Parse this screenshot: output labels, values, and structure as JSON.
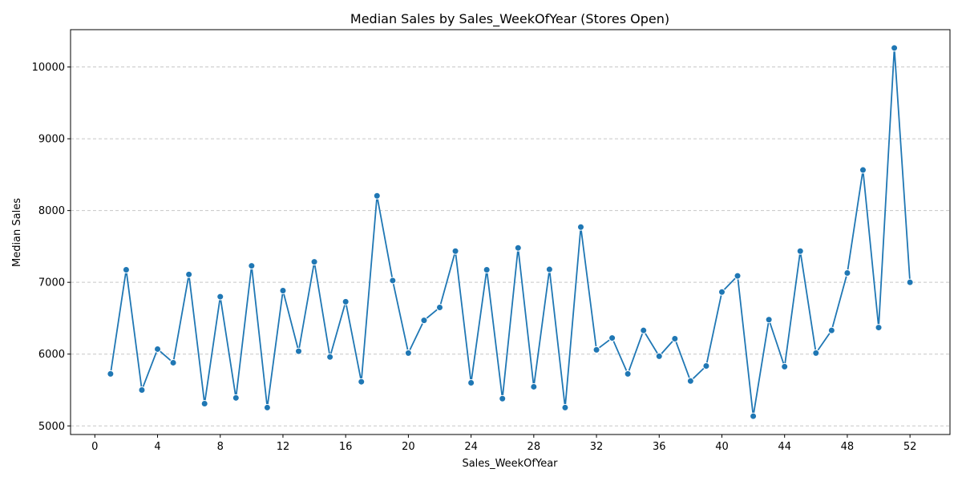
{
  "chart_data": {
    "type": "line",
    "title": "Median Sales by Sales_WeekOfYear (Stores Open)",
    "xlabel": "Sales_WeekOfYear",
    "ylabel": "Median Sales",
    "xlim": [
      -1.55,
      54.55
    ],
    "ylim": [
      4880,
      10520
    ],
    "xticks": [
      0,
      4,
      8,
      12,
      16,
      20,
      24,
      28,
      32,
      36,
      40,
      44,
      48,
      52
    ],
    "yticks": [
      5000,
      6000,
      7000,
      8000,
      9000,
      10000
    ],
    "grid": "y-dashed",
    "color": "#1f77b4",
    "x": [
      1,
      2,
      3,
      4,
      5,
      6,
      7,
      8,
      9,
      10,
      11,
      12,
      13,
      14,
      15,
      16,
      17,
      18,
      19,
      20,
      21,
      22,
      23,
      24,
      25,
      26,
      27,
      28,
      29,
      30,
      31,
      32,
      33,
      34,
      35,
      36,
      37,
      38,
      39,
      40,
      41,
      42,
      43,
      44,
      45,
      46,
      47,
      48,
      49,
      50,
      51,
      52
    ],
    "y": [
      5725,
      7175,
      5500,
      6070,
      5880,
      7110,
      5310,
      6800,
      5390,
      7230,
      5255,
      6885,
      6040,
      7285,
      5960,
      6730,
      5615,
      8205,
      7025,
      6015,
      6470,
      6650,
      7435,
      5600,
      7175,
      5380,
      7480,
      5545,
      7180,
      5255,
      7770,
      6060,
      6225,
      5725,
      6330,
      5970,
      6215,
      5625,
      5835,
      6865,
      7090,
      5135,
      6480,
      5825,
      7435,
      6015,
      6330,
      7130,
      8565,
      6370,
      10265,
      7000
    ]
  }
}
